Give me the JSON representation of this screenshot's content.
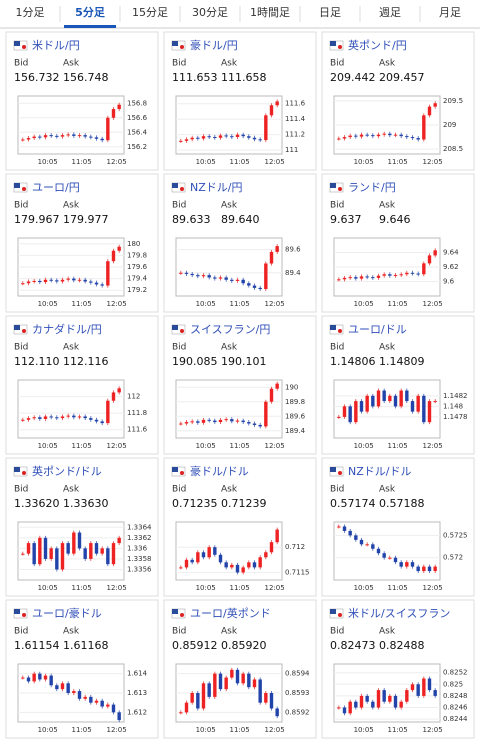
{
  "tabs": [
    "1分足",
    "5分足",
    "15分足",
    "30分足",
    "1時間足",
    "日足",
    "週足",
    "月足"
  ],
  "active_tab": 1,
  "bid_label": "Bid",
  "ask_label": "Ask",
  "time_labels": [
    "10:05",
    "11:05",
    "12:05"
  ],
  "cards": [
    {
      "title": "米ドル/円",
      "bid": "156.732",
      "ask": "156.748",
      "ylim": [
        156.1,
        156.9
      ],
      "yticks": [
        156.2,
        156.4,
        156.6,
        156.8
      ],
      "closes": [
        156.3,
        156.32,
        156.34,
        156.33,
        156.36,
        156.35,
        156.34,
        156.36,
        156.37,
        156.35,
        156.36,
        156.34,
        156.33,
        156.31,
        156.29,
        156.6,
        156.72,
        156.78
      ]
    },
    {
      "title": "豪ドル/円",
      "bid": "111.653",
      "ask": "111.658",
      "ylim": [
        110.95,
        111.7
      ],
      "yticks": [
        111,
        111.2,
        111.4,
        111.6
      ],
      "closes": [
        111.12,
        111.14,
        111.16,
        111.15,
        111.18,
        111.17,
        111.16,
        111.19,
        111.18,
        111.17,
        111.2,
        111.18,
        111.16,
        111.14,
        111.13,
        111.45,
        111.58,
        111.63
      ]
    },
    {
      "title": "英ポンド/円",
      "bid": "209.442",
      "ask": "209.457",
      "ylim": [
        208.4,
        209.6
      ],
      "yticks": [
        208.5,
        209,
        209.5
      ],
      "closes": [
        208.72,
        208.75,
        208.78,
        208.76,
        208.8,
        208.79,
        208.77,
        208.8,
        208.82,
        208.79,
        208.8,
        208.77,
        208.75,
        208.73,
        208.7,
        209.2,
        209.38,
        209.45
      ]
    },
    {
      "title": "ユーロ/円",
      "bid": "179.967",
      "ask": "179.977",
      "ylim": [
        179.1,
        180.1
      ],
      "yticks": [
        179.2,
        179.4,
        179.6,
        179.8,
        180
      ],
      "closes": [
        179.32,
        179.35,
        179.36,
        179.34,
        179.38,
        179.37,
        179.35,
        179.38,
        179.4,
        179.37,
        179.38,
        179.35,
        179.33,
        179.3,
        179.28,
        179.7,
        179.88,
        179.95
      ]
    },
    {
      "title": "NZドル/円",
      "bid": "89.633",
      "ask": "89.640",
      "ylim": [
        89.2,
        89.7
      ],
      "yticks": [
        89.4,
        89.6
      ],
      "closes": [
        89.4,
        89.39,
        89.38,
        89.37,
        89.38,
        89.36,
        89.35,
        89.36,
        89.34,
        89.33,
        89.34,
        89.31,
        89.29,
        89.27,
        89.26,
        89.48,
        89.58,
        89.63
      ]
    },
    {
      "title": "ランド/円",
      "bid": "9.637",
      "ask": "9.646",
      "ylim": [
        9.58,
        9.66
      ],
      "yticks": [
        9.6,
        9.62,
        9.64
      ],
      "closes": [
        9.603,
        9.605,
        9.606,
        9.604,
        9.607,
        9.606,
        9.605,
        9.608,
        9.61,
        9.608,
        9.609,
        9.61,
        9.612,
        9.611,
        9.61,
        9.625,
        9.636,
        9.643
      ]
    },
    {
      "title": "カナダドル/円",
      "bid": "112.110",
      "ask": "112.116",
      "ylim": [
        111.5,
        112.2
      ],
      "yticks": [
        111.6,
        111.8,
        112
      ],
      "closes": [
        111.72,
        111.74,
        111.75,
        111.73,
        111.76,
        111.75,
        111.74,
        111.76,
        111.77,
        111.75,
        111.76,
        111.74,
        111.72,
        111.7,
        111.68,
        111.95,
        112.05,
        112.1
      ]
    },
    {
      "title": "スイスフラン/円",
      "bid": "190.085",
      "ask": "190.101",
      "ylim": [
        189.3,
        190.1
      ],
      "yticks": [
        189.4,
        189.6,
        189.8,
        190
      ],
      "closes": [
        189.5,
        189.52,
        189.53,
        189.51,
        189.55,
        189.54,
        189.52,
        189.55,
        189.56,
        189.53,
        189.54,
        189.52,
        189.5,
        189.48,
        189.46,
        189.8,
        189.98,
        190.05
      ]
    },
    {
      "title": "ユーロ/ドル",
      "bid": "1.14806",
      "ask": "1.14809",
      "ylim": [
        1.1474,
        1.1485
      ],
      "yticks": [
        1.1478,
        1.148,
        1.1482
      ],
      "closes": [
        1.1478,
        1.148,
        1.1477,
        1.1481,
        1.1479,
        1.1482,
        1.148,
        1.1483,
        1.1481,
        1.1482,
        1.148,
        1.1483,
        1.1481,
        1.1479,
        1.1482,
        1.1477,
        1.1481,
        1.1481
      ]
    },
    {
      "title": "英ポンド/ドル",
      "bid": "1.33620",
      "ask": "1.33630",
      "ylim": [
        1.3354,
        1.3365
      ],
      "yticks": [
        1.3356,
        1.3358,
        1.336,
        1.3362,
        1.3364
      ],
      "closes": [
        1.3359,
        1.3361,
        1.3357,
        1.3362,
        1.3358,
        1.336,
        1.3356,
        1.3361,
        1.3359,
        1.3363,
        1.336,
        1.3358,
        1.3361,
        1.3359,
        1.336,
        1.3357,
        1.3361,
        1.3362
      ]
    },
    {
      "title": "豪ドル/ドル",
      "bid": "0.71235",
      "ask": "0.71239",
      "ylim": [
        0.71135,
        0.7125
      ],
      "yticks": [
        0.7115,
        0.712
      ],
      "closes": [
        0.7116,
        0.71175,
        0.7117,
        0.7119,
        0.7118,
        0.712,
        0.71185,
        0.7117,
        0.7116,
        0.71165,
        0.7115,
        0.7116,
        0.7117,
        0.7116,
        0.7118,
        0.7119,
        0.7121,
        0.71235
      ]
    },
    {
      "title": "NZドル/ドル",
      "bid": "0.57174",
      "ask": "0.57188",
      "ylim": [
        0.5715,
        0.5728
      ],
      "yticks": [
        0.572,
        0.5725
      ],
      "closes": [
        0.5727,
        0.5726,
        0.5725,
        0.5724,
        0.5723,
        0.5723,
        0.5722,
        0.5721,
        0.572,
        0.572,
        0.5719,
        0.5718,
        0.5719,
        0.5718,
        0.5717,
        0.5718,
        0.5717,
        0.5718
      ]
    },
    {
      "title": "ユーロ/豪ドル",
      "bid": "1.61154",
      "ask": "1.61168",
      "ylim": [
        1.6115,
        1.6145
      ],
      "yticks": [
        1.612,
        1.613,
        1.614
      ],
      "closes": [
        1.6138,
        1.6136,
        1.614,
        1.6137,
        1.6139,
        1.6134,
        1.6132,
        1.6135,
        1.613,
        1.6131,
        1.6127,
        1.6128,
        1.6125,
        1.6126,
        1.6123,
        1.6124,
        1.612,
        1.6116
      ]
    },
    {
      "title": "ユーロ/英ポンド",
      "bid": "0.85912",
      "ask": "0.85920",
      "ylim": [
        0.85915,
        0.85945
      ],
      "yticks": [
        0.8592,
        0.8593,
        0.8594
      ],
      "closes": [
        0.8592,
        0.85925,
        0.8593,
        0.85922,
        0.85935,
        0.85928,
        0.8594,
        0.85932,
        0.85938,
        0.85942,
        0.85935,
        0.8594,
        0.85933,
        0.85937,
        0.85925,
        0.8593,
        0.85922,
        0.85918
      ]
    },
    {
      "title": "米ドル/スイスフラン",
      "bid": "0.82473",
      "ask": "0.82488",
      "ylim": [
        0.82435,
        0.82535
      ],
      "yticks": [
        0.8244,
        0.8246,
        0.8248,
        0.825,
        0.8252
      ],
      "closes": [
        0.8246,
        0.8245,
        0.8247,
        0.8246,
        0.8248,
        0.8247,
        0.8246,
        0.8249,
        0.8247,
        0.8248,
        0.8246,
        0.8247,
        0.8249,
        0.825,
        0.8248,
        0.8251,
        0.8249,
        0.8248
      ]
    }
  ]
}
